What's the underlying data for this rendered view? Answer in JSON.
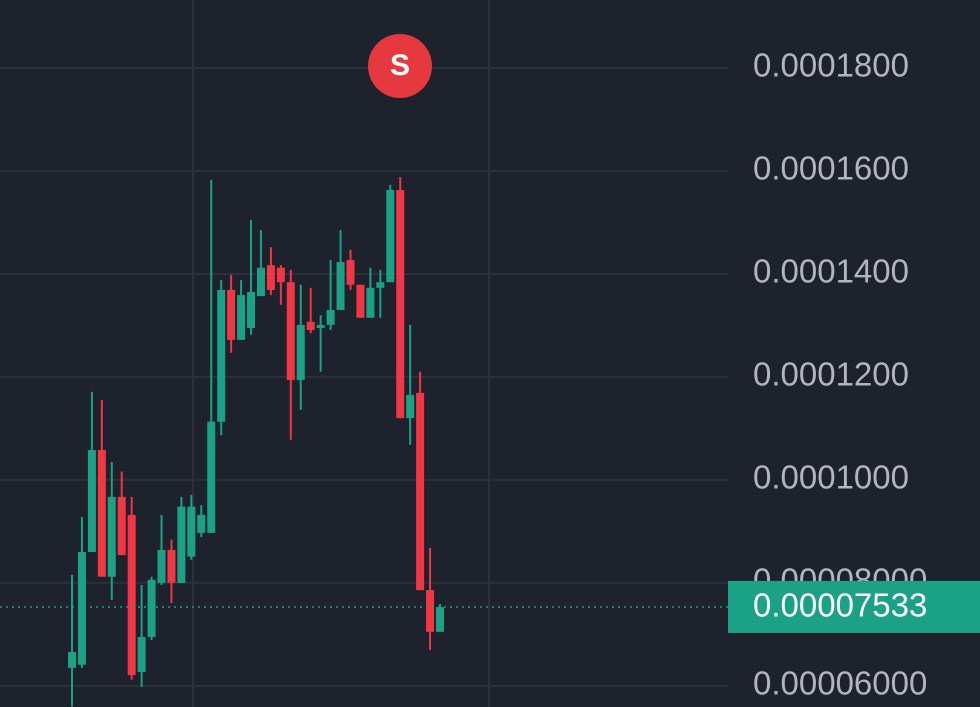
{
  "chart_data": {
    "type": "candlestick",
    "open": [
      6.35e-05,
      6.41e-05,
      8.6e-05,
      0.0001058,
      8.12e-05,
      9.67e-05,
      9.32e-05,
      6.27e-05,
      6.95e-05,
      8e-05,
      8.64e-05,
      8e-05,
      8.51e-05,
      8.97e-05,
      8.97e-05,
      0.0001113,
      0.0001369,
      0.0001272,
      0.0001295,
      0.0001357,
      0.0001417,
      0.0001412,
      0.0001384,
      0.0001194,
      0.0001307,
      0.0001295,
      0.0001301,
      0.000133,
      0.0001427,
      0.0001379,
      0.0001315,
      0.0001373,
      0.0001384,
      0.0001563,
      0.000112,
      0.0001169,
      7.86e-05,
      7.05e-05
    ],
    "high": [
      8.16e-05,
      9.28e-05,
      0.0001171,
      0.0001155,
      0.0001035,
      0.0001016,
      9.67e-05,
      7.96e-05,
      8.12e-05,
      9.32e-05,
      8.84e-05,
      9.67e-05,
      9.71e-05,
      9.51e-05,
      0.0001583,
      0.0001388,
      0.0001398,
      0.0001388,
      0.0001505,
      0.0001485,
      0.0001452,
      0.0001417,
      0.0001408,
      0.0001379,
      0.0001373,
      0.000132,
      0.0001427,
      0.0001485,
      0.0001447,
      0.0001379,
      0.0001412,
      0.0001408,
      0.0001573,
      0.0001588,
      0.0001301,
      0.000121,
      8.68e-05,
      7.59e-05
    ],
    "low": [
      5.6e-05,
      6.35e-05,
      8.6e-05,
      8.12e-05,
      7.67e-05,
      8.54e-05,
      6.12e-05,
      5.98e-05,
      6.89e-05,
      7.96e-05,
      7.61e-05,
      8e-05,
      8.45e-05,
      8.89e-05,
      8.97e-05,
      0.0001087,
      0.0001247,
      0.0001272,
      0.0001282,
      0.0001357,
      0.0001359,
      0.000134,
      0.0001078,
      0.0001136,
      0.0001285,
      0.000121,
      0.0001291,
      0.000133,
      0.0001369,
      0.0001315,
      0.0001315,
      0.0001315,
      0.0001384,
      0.000112,
      0.0001068,
      7.86e-05,
      6.7e-05,
      7.05e-05
    ],
    "close": [
      6.66e-05,
      8.6e-05,
      0.0001058,
      8.12e-05,
      9.67e-05,
      8.54e-05,
      6.21e-05,
      6.95e-05,
      8.06e-05,
      8.64e-05,
      8e-05,
      9.48e-05,
      9.48e-05,
      9.32e-05,
      0.0001113,
      0.0001369,
      0.0001272,
      0.0001359,
      0.0001365,
      0.0001412,
      0.0001369,
      0.0001384,
      0.0001194,
      0.0001301,
      0.0001291,
      0.0001301,
      0.000133,
      0.0001423,
      0.0001379,
      0.0001315,
      0.0001373,
      0.0001384,
      0.0001563,
      0.000112,
      0.0001165,
      7.86e-05,
      7.05e-05,
      7.53e-05
    ],
    "up_color": "#1ba185",
    "down_color": "#f23645",
    "ylim": [
      5.59e-05,
      0.0001932
    ],
    "yticks": [
      {
        "value": 6e-05,
        "label": "0.00006000"
      },
      {
        "value": 8e-05,
        "label": "0.00008000"
      },
      {
        "value": 0.0001,
        "label": "0.0001000"
      },
      {
        "value": 0.00012,
        "label": "0.0001200"
      },
      {
        "value": 0.00014,
        "label": "0.0001400"
      },
      {
        "value": 0.00016,
        "label": "0.0001600"
      },
      {
        "value": 0.00018,
        "label": "0.0001800"
      }
    ],
    "grid": true,
    "current_price": {
      "value": 7.533e-05,
      "label": "0.00007533"
    },
    "annotation": "S"
  }
}
